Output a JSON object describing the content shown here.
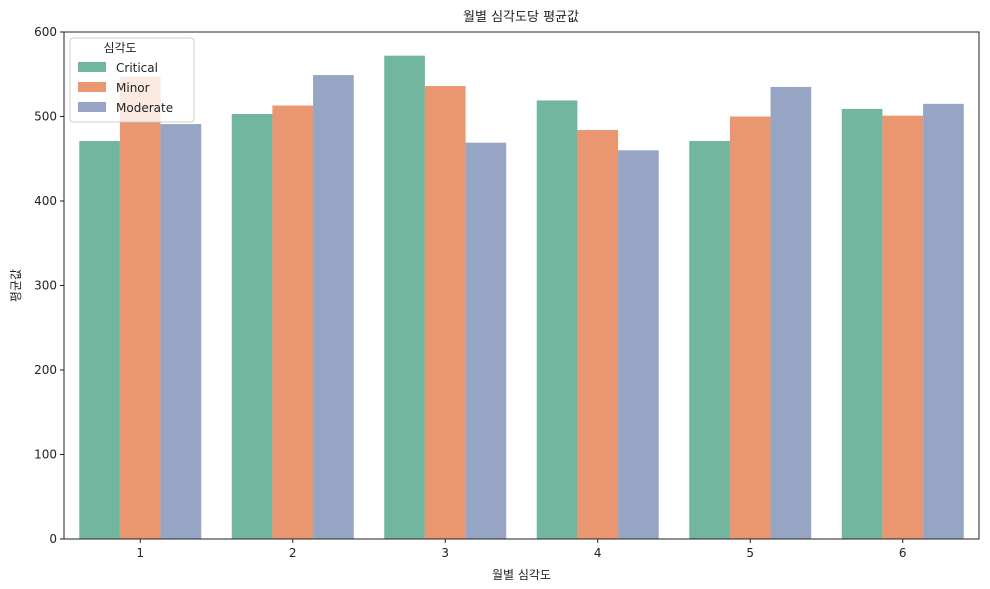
{
  "chart_data": {
    "type": "bar",
    "title": "월별 심각도당 평균값",
    "xlabel": "월별 심각도",
    "ylabel": "평균값",
    "categories": [
      "1",
      "2",
      "3",
      "4",
      "5",
      "6"
    ],
    "ylim": [
      0,
      600
    ],
    "yticks": [
      0,
      100,
      200,
      300,
      400,
      500,
      600
    ],
    "grid": false,
    "legend": {
      "title": "심각도",
      "placement": "top-left"
    },
    "series": [
      {
        "name": "Critical",
        "color": "#72b6a0",
        "values": [
          471,
          503,
          572,
          519,
          471,
          509
        ]
      },
      {
        "name": "Minor",
        "color": "#ea9671",
        "values": [
          547,
          513,
          536,
          484,
          500,
          501
        ]
      },
      {
        "name": "Moderate",
        "color": "#95a5c3",
        "values": [
          491,
          549,
          469,
          460,
          535,
          515
        ]
      }
    ]
  }
}
